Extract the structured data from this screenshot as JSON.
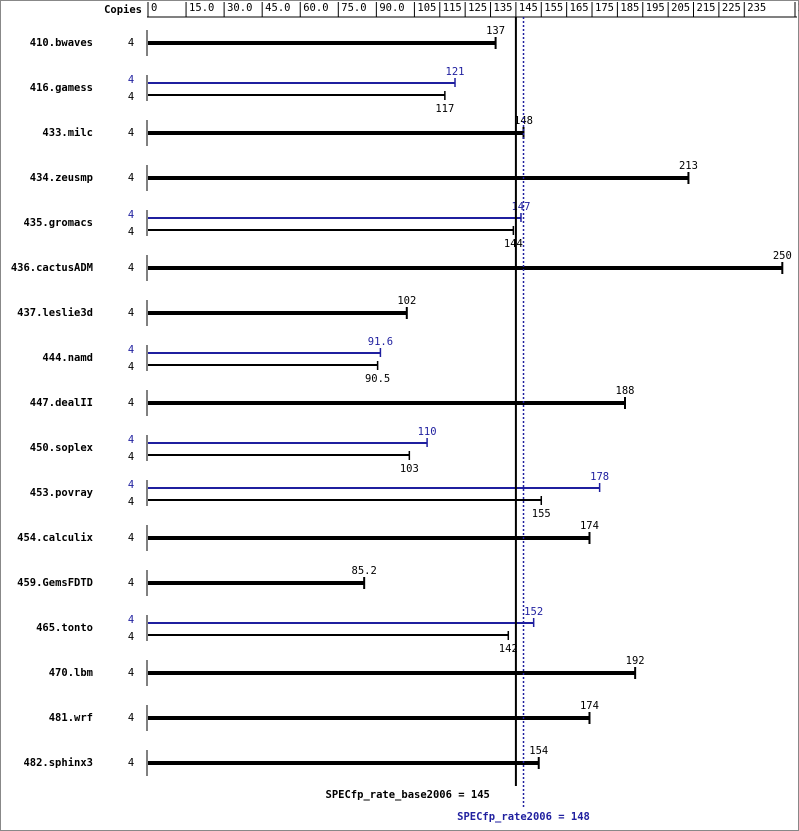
{
  "chart_data": {
    "type": "bar",
    "copies_label": "Copies",
    "categories": [
      "410.bwaves",
      "416.gamess",
      "433.milc",
      "434.zeusmp",
      "435.gromacs",
      "436.cactusADM",
      "437.leslie3d",
      "444.namd",
      "447.dealII",
      "450.soplex",
      "453.povray",
      "454.calculix",
      "459.GemsFDTD",
      "465.tonto",
      "470.lbm",
      "481.wrf",
      "482.sphinx3"
    ],
    "series": [
      {
        "name": "peak",
        "color": "#1f1f9f",
        "copies": [
          null,
          4,
          null,
          null,
          4,
          null,
          null,
          4,
          null,
          4,
          4,
          null,
          null,
          4,
          null,
          null,
          null
        ],
        "values": [
          null,
          121,
          null,
          null,
          147,
          null,
          null,
          91.6,
          null,
          110,
          178,
          null,
          null,
          152,
          null,
          null,
          null
        ]
      },
      {
        "name": "base",
        "color": "#000000",
        "copies": [
          4,
          4,
          4,
          4,
          4,
          4,
          4,
          4,
          4,
          4,
          4,
          4,
          4,
          4,
          4,
          4,
          4
        ],
        "values": [
          137,
          117,
          148,
          213,
          144,
          250,
          102,
          90.5,
          188,
          103,
          155,
          174,
          85.2,
          142,
          192,
          174,
          154
        ]
      }
    ],
    "xlim": [
      0,
      255
    ],
    "xticks": [
      0,
      {
        "value": 15,
        "label": "15.0"
      },
      {
        "value": 30,
        "label": "30.0"
      },
      {
        "value": 45,
        "label": "45.0"
      },
      {
        "value": 60,
        "label": "60.0"
      },
      {
        "value": 75,
        "label": "75.0"
      },
      {
        "value": 90,
        "label": "90.0"
      },
      105,
      115,
      125,
      135,
      145,
      155,
      165,
      175,
      185,
      195,
      205,
      215,
      225,
      235,
      255
    ],
    "reference_lines": [
      {
        "label": "SPECfp_rate_base2006 = 145",
        "value": 145,
        "color": "#000000",
        "style": "solid"
      },
      {
        "label": "SPECfp_rate2006 = 148",
        "value": 148,
        "color": "#1f1f9f",
        "style": "dotted"
      }
    ]
  }
}
